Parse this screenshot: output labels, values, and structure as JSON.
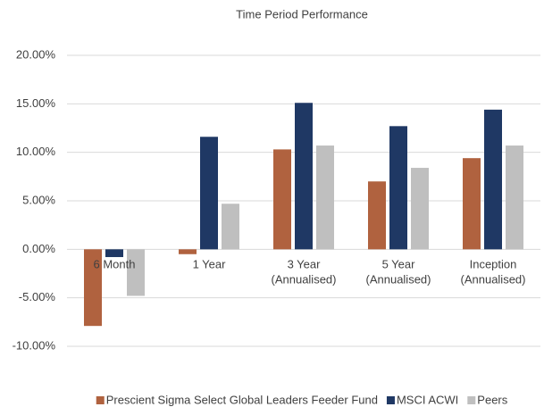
{
  "chart_data": {
    "type": "bar",
    "title": "Time Period Performance",
    "categories": [
      [
        "6 Month"
      ],
      [
        "1 Year"
      ],
      [
        "3 Year",
        "(Annualised)"
      ],
      [
        "5 Year",
        "(Annualised)"
      ],
      [
        "Inception",
        "(Annualised)"
      ]
    ],
    "series": [
      {
        "name": "Prescient Sigma Select Global Leaders Feeder Fund",
        "color": "#b0623f",
        "values": [
          -7.9,
          -0.5,
          10.3,
          7.0,
          9.4
        ]
      },
      {
        "name": "MSCI ACWI",
        "color": "#1f3864",
        "values": [
          -0.8,
          11.6,
          15.1,
          12.7,
          14.4
        ]
      },
      {
        "name": "Peers",
        "color": "#bfbfbf",
        "values": [
          -4.8,
          4.7,
          10.7,
          8.4,
          10.7
        ]
      }
    ],
    "ylim": [
      -10,
      20
    ],
    "yticks": [
      {
        "value": -10,
        "label": "-10.00%"
      },
      {
        "value": -5,
        "label": "-5.00%"
      },
      {
        "value": 0,
        "label": "0.00%"
      },
      {
        "value": 5,
        "label": "5.00%"
      },
      {
        "value": 10,
        "label": "10.00%"
      },
      {
        "value": 15,
        "label": "15.00%"
      },
      {
        "value": 20,
        "label": "20.00%"
      }
    ],
    "grid": true,
    "legend": "bottom"
  }
}
